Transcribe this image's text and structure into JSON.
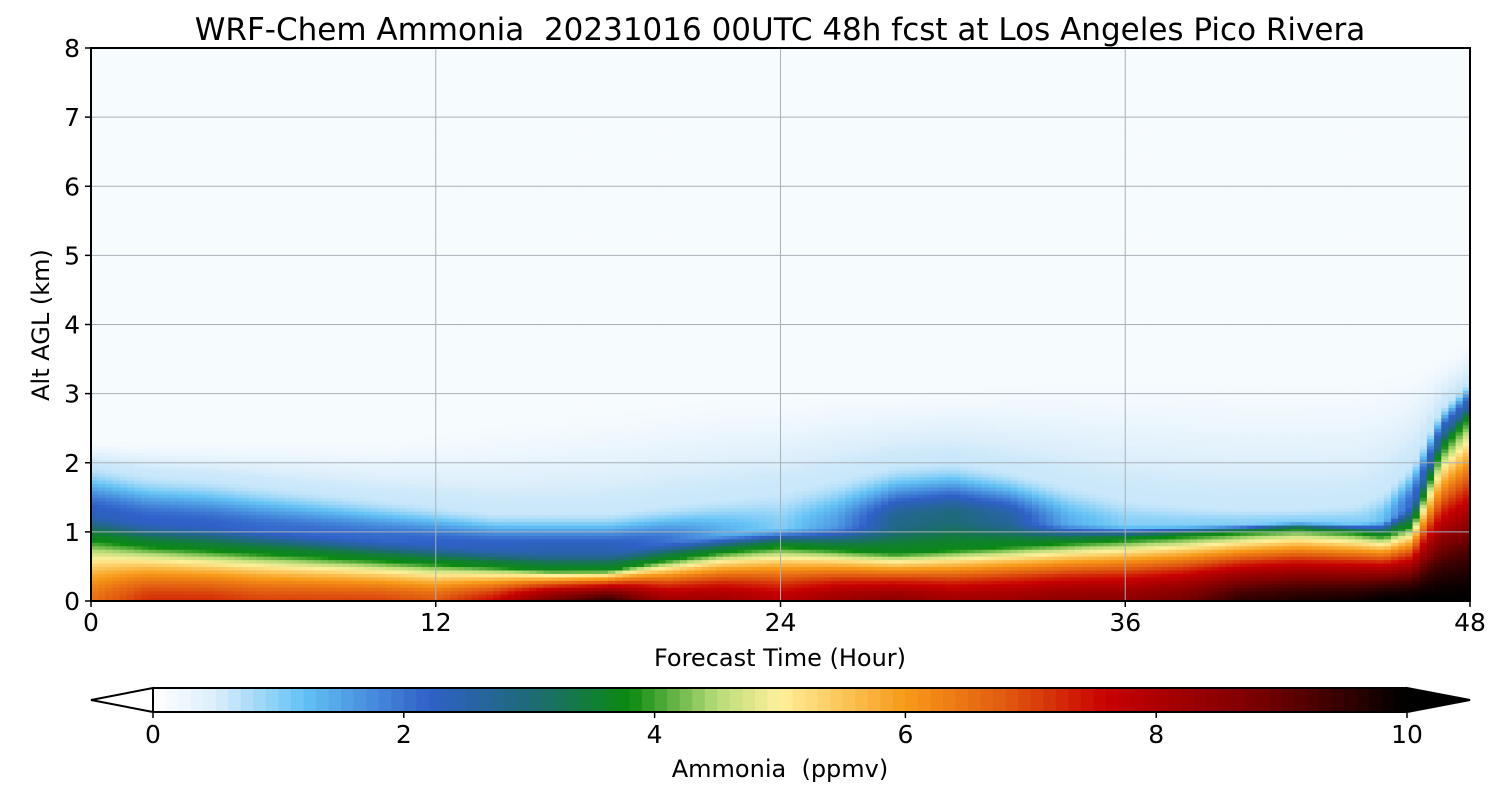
{
  "chart_data": {
    "type": "heatmap",
    "title": "WRF-Chem Ammonia  20231016 00UTC 48h fcst at Los Angeles Pico Rivera",
    "xlabel": "Forecast Time (Hour)",
    "ylabel": "Alt AGL (km)",
    "xlim": [
      0,
      48
    ],
    "ylim": [
      0,
      8
    ],
    "x_ticks": [
      0,
      12,
      24,
      36,
      48
    ],
    "y_ticks": [
      0,
      1,
      2,
      3,
      4,
      5,
      6,
      7,
      8
    ],
    "grid": true,
    "colorbar": {
      "label": "Ammonia  (ppmv)",
      "range": [
        0,
        10
      ],
      "ticks": [
        0,
        2,
        4,
        6,
        8,
        10
      ],
      "extend": "both",
      "color_stops": [
        {
          "v": 0.0,
          "c": "#ffffff"
        },
        {
          "v": 0.5,
          "c": "#dbeefb"
        },
        {
          "v": 1.2,
          "c": "#63c2f5"
        },
        {
          "v": 2.2,
          "c": "#3060c8"
        },
        {
          "v": 3.0,
          "c": "#1e6a78"
        },
        {
          "v": 3.8,
          "c": "#0a8a10"
        },
        {
          "v": 4.5,
          "c": "#b8dc78"
        },
        {
          "v": 5.0,
          "c": "#fff09a"
        },
        {
          "v": 6.0,
          "c": "#f89a18"
        },
        {
          "v": 6.8,
          "c": "#e05a10"
        },
        {
          "v": 7.6,
          "c": "#c80000"
        },
        {
          "v": 8.8,
          "c": "#7a0000"
        },
        {
          "v": 10.0,
          "c": "#000000"
        }
      ]
    },
    "profiles_x": [
      0,
      2,
      4,
      6,
      8,
      10,
      12,
      14,
      16,
      18,
      20,
      22,
      24,
      26,
      28,
      30,
      32,
      34,
      36,
      38,
      40,
      42,
      44,
      45,
      46,
      47,
      48
    ],
    "surface_ppmv": [
      6.5,
      7.2,
      7.2,
      7.0,
      7.0,
      7.0,
      6.8,
      7.5,
      8.8,
      9.5,
      8.2,
      8.2,
      7.8,
      8.3,
      8.5,
      8.2,
      8.3,
      8.5,
      8.5,
      8.8,
      9.5,
      9.7,
      9.8,
      10,
      10,
      10,
      10
    ],
    "boundary_layer_top_km": [
      0.9,
      0.8,
      0.75,
      0.7,
      0.65,
      0.6,
      0.55,
      0.5,
      0.45,
      0.45,
      0.6,
      0.72,
      0.8,
      0.75,
      0.7,
      0.75,
      0.8,
      0.85,
      0.9,
      0.95,
      1.0,
      1.05,
      1.0,
      0.95,
      1.1,
      2.2,
      2.7
    ],
    "upper_blue_top_km": [
      2.0,
      1.85,
      1.8,
      1.7,
      1.6,
      1.5,
      1.4,
      1.3,
      1.3,
      1.3,
      1.4,
      1.5,
      1.6,
      1.8,
      2.0,
      2.05,
      1.9,
      1.7,
      1.5,
      1.4,
      1.35,
      1.35,
      1.4,
      1.6,
      2.0,
      2.8,
      3.2
    ],
    "upper_blue_max_ppmv": [
      2.3,
      2.2,
      2.2,
      2.1,
      2.1,
      2.1,
      2.2,
      2.3,
      2.4,
      2.4,
      2.0,
      1.4,
      1.0,
      1.6,
      2.8,
      3.0,
      2.6,
      1.4,
      1.0,
      0.9,
      0.8,
      0.8,
      0.8,
      1.2,
      2.2,
      2.6,
      2.4
    ],
    "haze_top_km": [
      2.3,
      2.3,
      2.3,
      2.3,
      2.3,
      2.3,
      2.4,
      2.5,
      2.6,
      2.7,
      2.8,
      2.9,
      2.9,
      3.0,
      3.0,
      3.05,
      3.1,
      3.15,
      3.15,
      3.15,
      3.1,
      3.1,
      3.1,
      3.2,
      3.3,
      3.5,
      3.7
    ]
  }
}
